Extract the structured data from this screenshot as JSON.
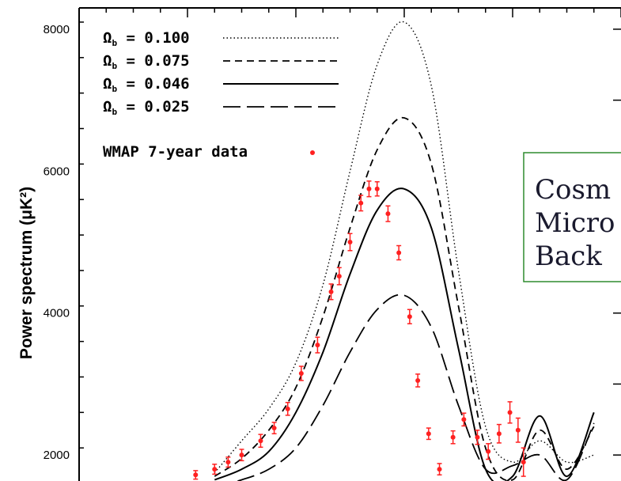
{
  "chart_data": {
    "type": "line",
    "xlabel": "",
    "ylabel": "Power spectrum (μK²)",
    "ylim": [
      1500,
      8300
    ],
    "xlim": [
      0,
      1000
    ],
    "yticks": [
      2000,
      4000,
      6000,
      8000
    ],
    "grid": false,
    "legend_position": "top-left",
    "x": [
      0,
      50,
      100,
      150,
      200,
      250,
      300,
      350,
      400,
      450,
      500,
      550,
      600,
      650,
      700,
      750,
      800,
      850,
      900,
      950,
      1000
    ],
    "series": [
      {
        "name": "Ωb = 0.100",
        "style": "dotted",
        "values": [
          null,
          null,
          null,
          null,
          null,
          1750,
          2200,
          2650,
          3300,
          4400,
          6000,
          7500,
          8100,
          7200,
          4600,
          2400,
          1900,
          2200,
          1900,
          2000,
          null
        ]
      },
      {
        "name": "Ωb = 0.075",
        "style": "dashed",
        "values": [
          null,
          null,
          null,
          null,
          null,
          1700,
          1950,
          2350,
          2950,
          3950,
          5200,
          6300,
          6750,
          6100,
          4100,
          2100,
          1650,
          2350,
          1800,
          2400,
          null
        ]
      },
      {
        "name": "Ωb = 0.046",
        "style": "solid",
        "values": [
          null,
          null,
          null,
          null,
          null,
          1650,
          1800,
          2050,
          2600,
          3450,
          4550,
          5450,
          5750,
          5200,
          3500,
          1800,
          1700,
          2550,
          1700,
          2600,
          null
        ]
      },
      {
        "name": "Ωb = 0.025",
        "style": "longdash",
        "values": [
          null,
          null,
          null,
          null,
          null,
          1550,
          1650,
          1800,
          2100,
          2700,
          3450,
          4050,
          4250,
          3800,
          2700,
          1800,
          1850,
          2000,
          1650,
          2450,
          null
        ]
      }
    ],
    "wmap": {
      "name": "WMAP 7-year data",
      "points": [
        {
          "x": 215,
          "y": 1720,
          "err": 60
        },
        {
          "x": 250,
          "y": 1800,
          "err": 70
        },
        {
          "x": 275,
          "y": 1900,
          "err": 70
        },
        {
          "x": 300,
          "y": 2000,
          "err": 80
        },
        {
          "x": 335,
          "y": 2200,
          "err": 90
        },
        {
          "x": 360,
          "y": 2380,
          "err": 80
        },
        {
          "x": 385,
          "y": 2650,
          "err": 90
        },
        {
          "x": 410,
          "y": 3150,
          "err": 100
        },
        {
          "x": 440,
          "y": 3550,
          "err": 110
        },
        {
          "x": 465,
          "y": 4300,
          "err": 110
        },
        {
          "x": 480,
          "y": 4520,
          "err": 120
        },
        {
          "x": 500,
          "y": 5000,
          "err": 120
        },
        {
          "x": 520,
          "y": 5550,
          "err": 110
        },
        {
          "x": 535,
          "y": 5750,
          "err": 110
        },
        {
          "x": 550,
          "y": 5750,
          "err": 100
        },
        {
          "x": 570,
          "y": 5400,
          "err": 110
        },
        {
          "x": 590,
          "y": 4850,
          "err": 100
        },
        {
          "x": 610,
          "y": 3950,
          "err": 100
        },
        {
          "x": 625,
          "y": 3050,
          "err": 90
        },
        {
          "x": 645,
          "y": 2300,
          "err": 80
        },
        {
          "x": 665,
          "y": 1800,
          "err": 80
        },
        {
          "x": 690,
          "y": 2250,
          "err": 90
        },
        {
          "x": 710,
          "y": 2500,
          "err": 90
        },
        {
          "x": 735,
          "y": 2250,
          "err": 100
        },
        {
          "x": 755,
          "y": 2050,
          "err": 110
        },
        {
          "x": 775,
          "y": 2300,
          "err": 130
        },
        {
          "x": 795,
          "y": 2600,
          "err": 150
        },
        {
          "x": 810,
          "y": 2350,
          "err": 170
        },
        {
          "x": 820,
          "y": 1900,
          "err": 200
        }
      ]
    }
  },
  "callout": {
    "lines": [
      "Cosm",
      "Micro",
      "Back"
    ],
    "border_color": "#2e8b2e"
  },
  "colors": {
    "data_point": "#ff2020",
    "line": "#000000"
  }
}
